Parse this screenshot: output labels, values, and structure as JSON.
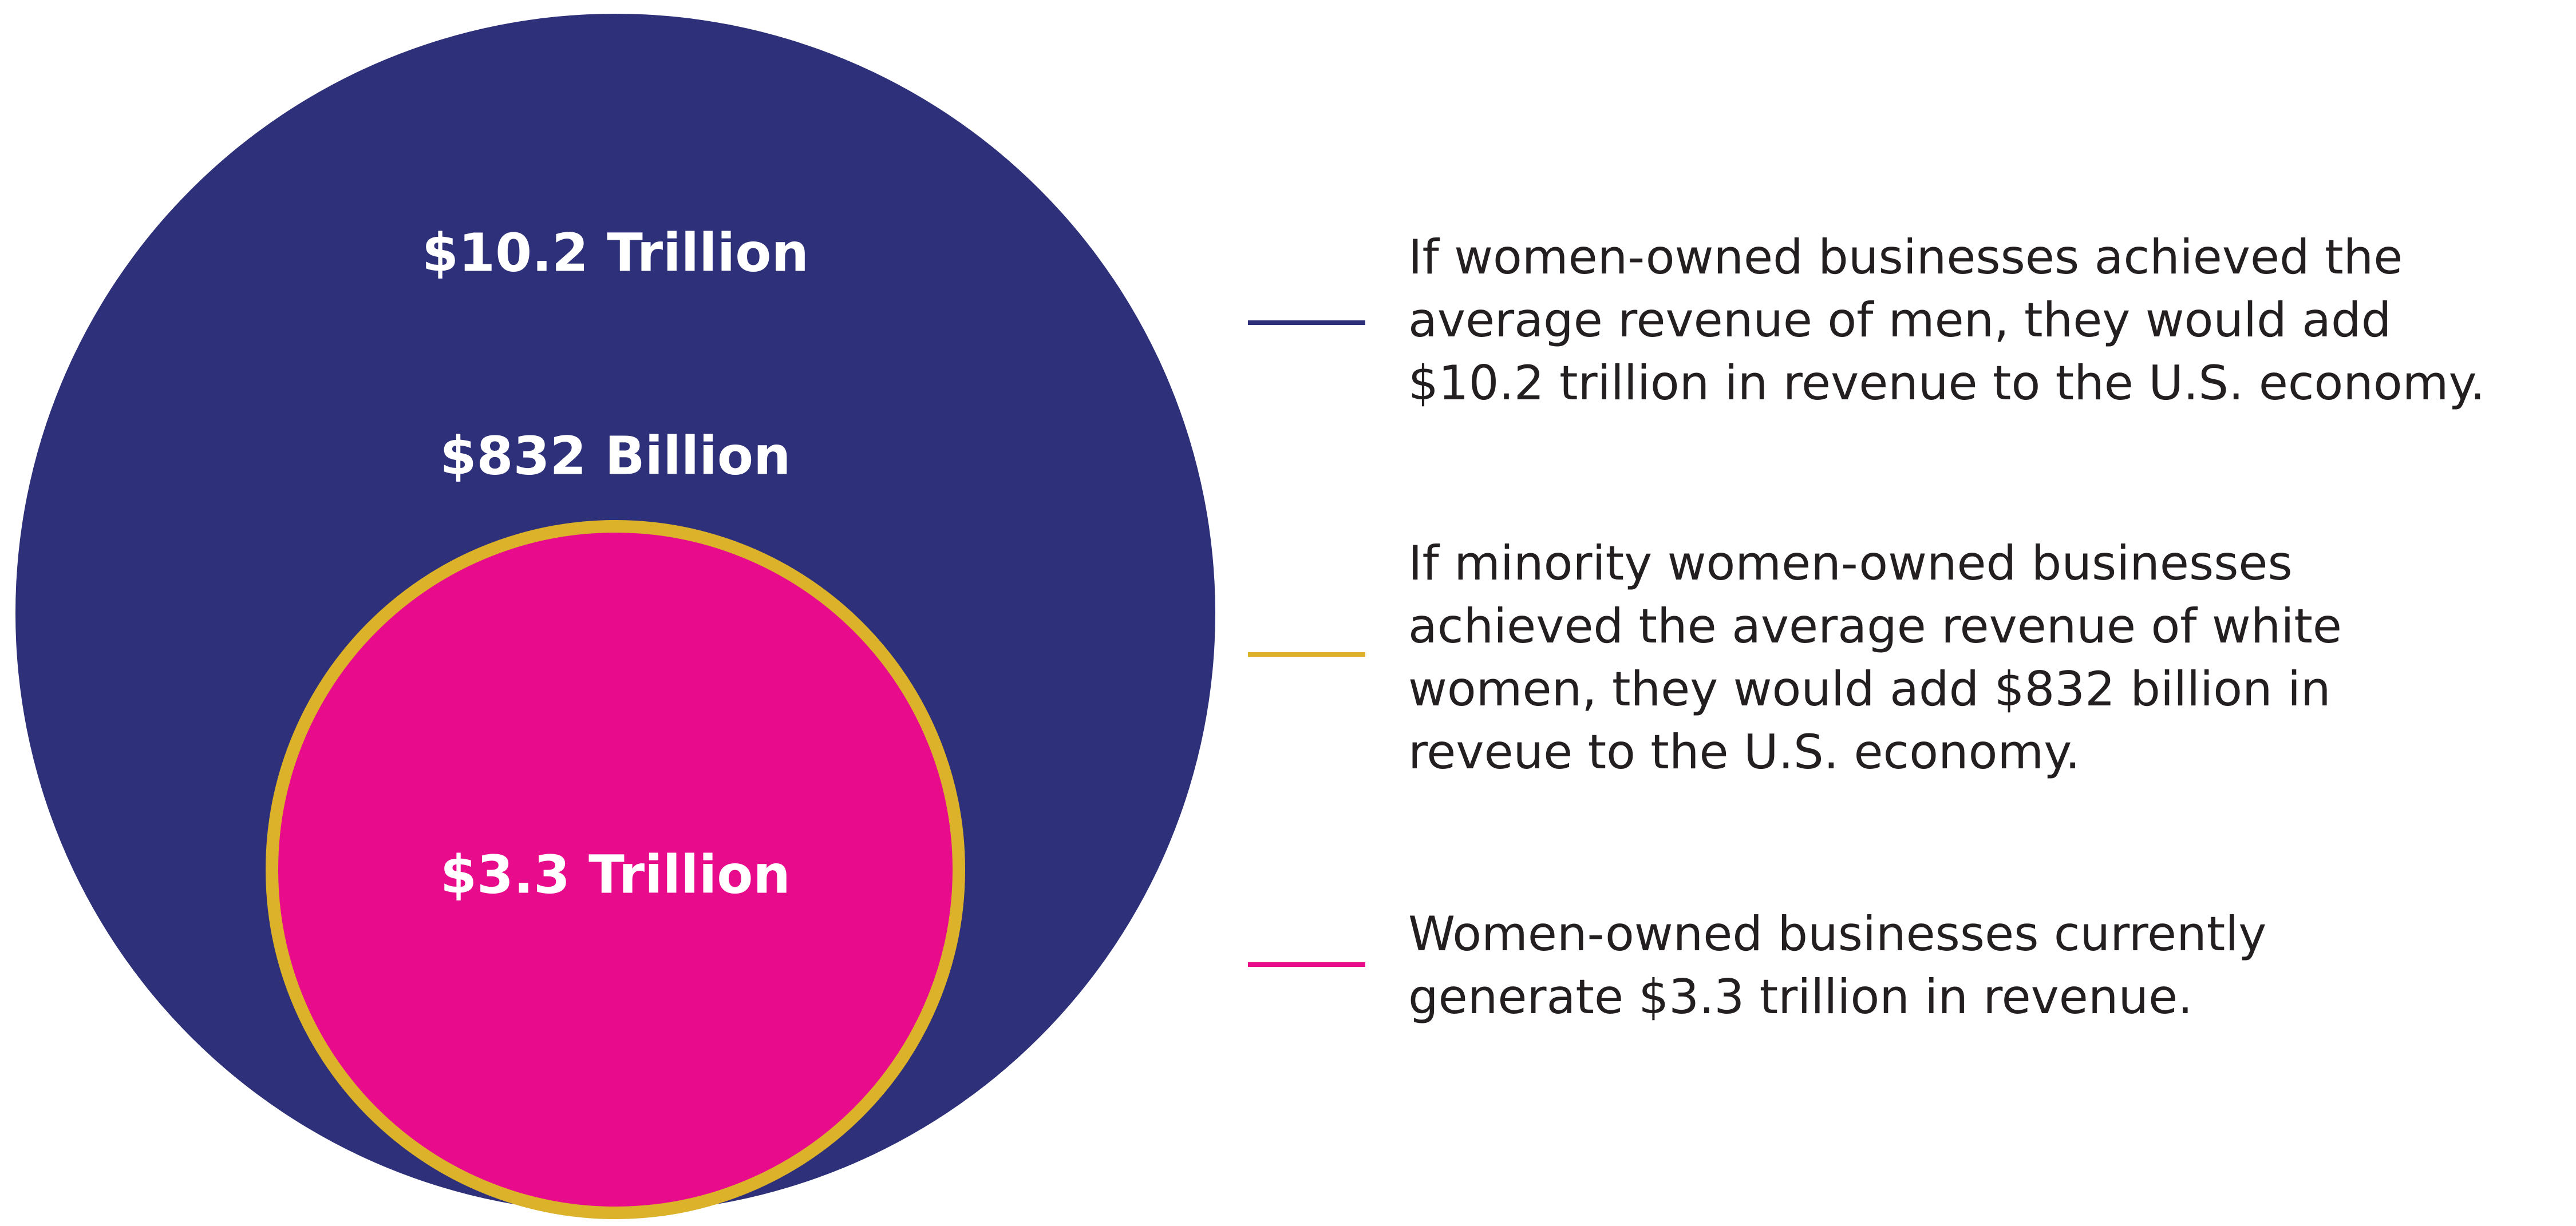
{
  "colors": {
    "outer_fill": "#2e3179",
    "ring": "#dcb22a",
    "inner_fill": "#e80c8c",
    "label_text": "#ffffff",
    "body_text": "#231f20",
    "background": "#ffffff"
  },
  "chart_data": {
    "type": "nested-bubble",
    "title": "",
    "bubbles": [
      {
        "key": "outer",
        "label": "$10.2 Trillion",
        "value_trillion": 10.2,
        "color": "#2e3179"
      },
      {
        "key": "ring",
        "label": "$832 Billion",
        "value_trillion": 0.832,
        "color": "#dcb22a"
      },
      {
        "key": "inner",
        "label": "$3.3 Trillion",
        "value_trillion": 3.3,
        "color": "#e80c8c"
      }
    ],
    "legend": [
      {
        "key": "outer",
        "color": "#2e3179",
        "text": "If women-owned businesses achieved the\naverage revenue of men, they would add\n$10.2 trillion in revenue to the U.S. economy."
      },
      {
        "key": "ring",
        "color": "#dcb22a",
        "text": "If minority women-owned businesses\nachieved the average revenue of white\nwomen, they would add $832 billion in\nreveue to the U.S. economy."
      },
      {
        "key": "inner",
        "color": "#e80c8c",
        "text": "Women-owned businesses currently\ngenerate $3.3 trillion in revenue."
      }
    ]
  }
}
